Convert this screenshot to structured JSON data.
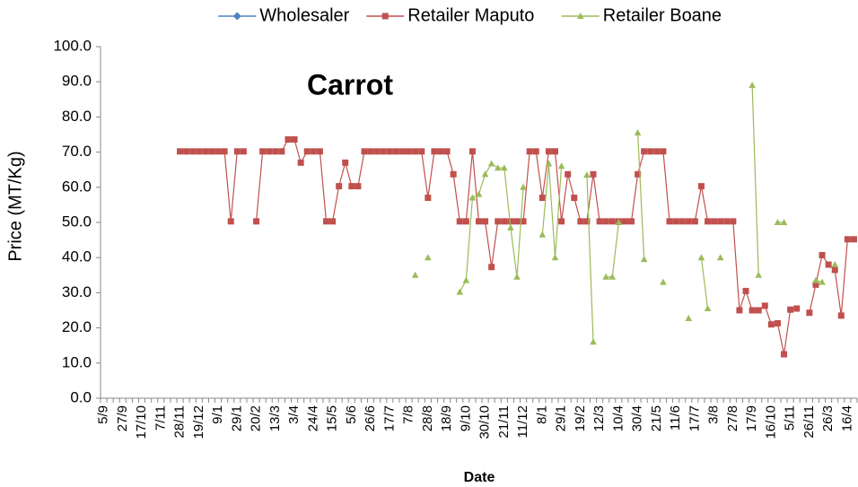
{
  "chart_data": {
    "type": "line",
    "title": "Carrot",
    "x_label": "Date",
    "y_label": "Price (MT/Kg)",
    "categories": [
      "5/9",
      null,
      null,
      "27/9",
      null,
      null,
      "17/10",
      null,
      null,
      "7/11",
      null,
      null,
      "28/11",
      null,
      null,
      "19/12",
      null,
      null,
      "9/1",
      null,
      null,
      "29/1",
      null,
      null,
      "20/2",
      null,
      null,
      "13/3",
      null,
      null,
      "3/4",
      null,
      null,
      "24/4",
      null,
      null,
      "15/5",
      null,
      null,
      "5/6",
      null,
      null,
      "26/6",
      null,
      null,
      "17/7",
      null,
      null,
      "7/8",
      null,
      null,
      "28/8",
      null,
      null,
      "18/9",
      null,
      null,
      "9/10",
      null,
      null,
      "30/10",
      null,
      null,
      "21/11",
      null,
      null,
      "11/12",
      null,
      null,
      "8/1",
      null,
      null,
      "29/1",
      null,
      null,
      "19/2",
      null,
      null,
      "12/3",
      null,
      null,
      "10/4",
      null,
      null,
      "30/4",
      null,
      null,
      "21/5",
      null,
      null,
      "11/6",
      null,
      null,
      "17/7",
      null,
      null,
      "3/8",
      null,
      null,
      "27/8",
      null,
      null,
      "17/9",
      null,
      null,
      "16/10",
      null,
      null,
      "5/11",
      null,
      null,
      "26/11",
      null,
      null,
      "26/3",
      null,
      null,
      "16/4",
      null
    ],
    "series": [
      {
        "name": "Wholesaler",
        "color": "#4f81bd",
        "marker": "diamond",
        "values": [
          null,
          null,
          null,
          null,
          null,
          null,
          null,
          null,
          null,
          null,
          null,
          null,
          null,
          null,
          null,
          null,
          null,
          null,
          null,
          null,
          null,
          null,
          null,
          null,
          null,
          null,
          null,
          null,
          null,
          null,
          null,
          null,
          null,
          null,
          null,
          null,
          null,
          null,
          null,
          null,
          null,
          null,
          null,
          null,
          null,
          null,
          null,
          null,
          null,
          null,
          null,
          null,
          null,
          null,
          null,
          null,
          null,
          null,
          null,
          null,
          null,
          null,
          null,
          null,
          null,
          null,
          null,
          null,
          null,
          null,
          null,
          null,
          null,
          null,
          null,
          null,
          null,
          null,
          null,
          null,
          null,
          null,
          null,
          null,
          null,
          null,
          null,
          null,
          null,
          null,
          null,
          null,
          null,
          null,
          null,
          null,
          null,
          null,
          null,
          null,
          null,
          null,
          null,
          null,
          null,
          null,
          null,
          null,
          null,
          null,
          null,
          null,
          null,
          null,
          null,
          null,
          null,
          null,
          null
        ]
      },
      {
        "name": "Retailer Maputo",
        "color": "#c0504d",
        "marker": "square",
        "values": [
          null,
          null,
          null,
          null,
          null,
          null,
          null,
          null,
          null,
          null,
          null,
          null,
          70.2,
          70.2,
          70.2,
          70.2,
          70.2,
          70.2,
          70.2,
          70.2,
          50.3,
          70.2,
          70.2,
          null,
          50.3,
          70.2,
          70.2,
          70.2,
          70.2,
          73.6,
          73.6,
          67,
          70.2,
          70.2,
          70.2,
          50.3,
          50.3,
          60.3,
          67,
          60.3,
          60.3,
          70.2,
          70.2,
          70.2,
          70.2,
          70.2,
          70.2,
          70.2,
          70.2,
          70.2,
          70.2,
          57,
          70.2,
          70.2,
          70.2,
          63.7,
          50.3,
          50.3,
          70.2,
          50.3,
          50.3,
          37.3,
          50.3,
          50.3,
          50.3,
          50.3,
          50.3,
          70.2,
          70.2,
          57,
          70.2,
          70.2,
          50.3,
          63.7,
          57,
          50.3,
          50.3,
          63.7,
          50.3,
          50.3,
          50.3,
          50.3,
          50.3,
          50.3,
          63.7,
          70.2,
          70.2,
          70.2,
          70.2,
          50.3,
          50.3,
          50.3,
          50.3,
          50.3,
          60.3,
          50.3,
          50.3,
          50.3,
          50.3,
          50.3,
          25,
          30.5,
          25,
          25,
          26.3,
          21,
          21.3,
          12.5,
          25.2,
          25.5,
          null,
          24.3,
          32.3,
          40.7,
          38,
          36.5,
          23.5,
          45.2,
          45.2
        ]
      },
      {
        "name": "Retailer Boane",
        "color": "#9bbb59",
        "marker": "triangle",
        "values": [
          null,
          null,
          null,
          null,
          null,
          null,
          null,
          null,
          null,
          null,
          null,
          null,
          null,
          null,
          null,
          null,
          null,
          null,
          null,
          null,
          null,
          null,
          null,
          null,
          null,
          null,
          null,
          null,
          null,
          null,
          null,
          null,
          null,
          null,
          null,
          null,
          null,
          null,
          null,
          null,
          null,
          null,
          null,
          null,
          null,
          null,
          null,
          null,
          null,
          35,
          null,
          40,
          null,
          null,
          null,
          null,
          30.2,
          33.5,
          57,
          58,
          63.7,
          66.7,
          65.5,
          65.5,
          48.5,
          34.5,
          60,
          null,
          null,
          46.5,
          66.7,
          40,
          66,
          null,
          null,
          null,
          63.5,
          16,
          null,
          34.5,
          34.5,
          50,
          null,
          null,
          75.5,
          39.5,
          null,
          null,
          33,
          null,
          null,
          null,
          22.7,
          null,
          40,
          25.5,
          null,
          40,
          null,
          null,
          null,
          null,
          89,
          35,
          null,
          null,
          50,
          50,
          null,
          null,
          null,
          null,
          33.5,
          33,
          null,
          38,
          null,
          null,
          null
        ]
      }
    ],
    "ylim": [
      0,
      100
    ],
    "yticks": [
      {
        "value": 0,
        "label": "0.0"
      },
      {
        "value": 10,
        "label": "10.0"
      },
      {
        "value": 20,
        "label": "20.0"
      },
      {
        "value": 30,
        "label": "30.0"
      },
      {
        "value": 40,
        "label": "40.0"
      },
      {
        "value": 50,
        "label": "50.0"
      },
      {
        "value": 60,
        "label": "60.0"
      },
      {
        "value": 70,
        "label": "70.0"
      },
      {
        "value": 80,
        "label": "80.0"
      },
      {
        "value": 90,
        "label": "90.0"
      },
      {
        "value": 100,
        "label": "100.0"
      }
    ],
    "grid": false,
    "legend": "top"
  }
}
